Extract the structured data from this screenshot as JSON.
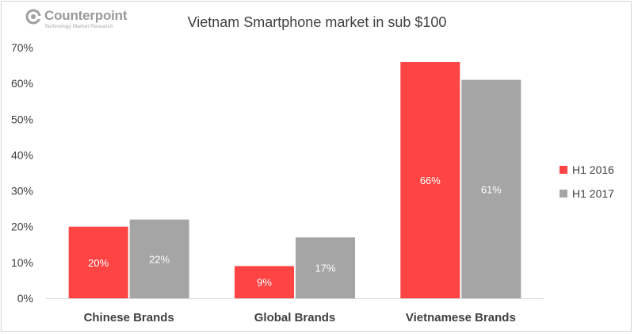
{
  "brand": {
    "name": "Counterpoint",
    "tagline": "Technology Market Research"
  },
  "chart_data": {
    "type": "bar",
    "title": "Vietnam Smartphone market in sub $100",
    "categories": [
      "Chinese Brands",
      "Global Brands",
      "Vietnamese Brands"
    ],
    "series": [
      {
        "name": "H1 2016",
        "values": [
          20,
          9,
          66
        ],
        "labels": [
          "20%",
          "9%",
          "66%"
        ],
        "color": "#ff4444"
      },
      {
        "name": "H1 2017",
        "values": [
          22,
          17,
          61
        ],
        "labels": [
          "22%",
          "17%",
          "61%"
        ],
        "color": "#a5a5a5"
      }
    ],
    "ylim": [
      0,
      70
    ],
    "yticks": [
      0,
      10,
      20,
      30,
      40,
      50,
      60,
      70
    ],
    "ytick_labels": [
      "0%",
      "10%",
      "20%",
      "30%",
      "40%",
      "50%",
      "60%",
      "70%"
    ],
    "grid": false,
    "legend_position": "right"
  }
}
